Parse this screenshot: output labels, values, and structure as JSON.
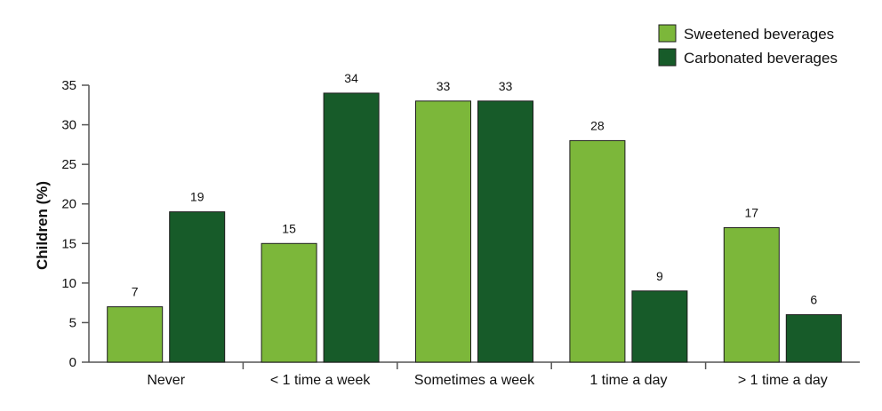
{
  "chart_data": {
    "type": "bar",
    "categories": [
      "Never",
      "< 1 time a week",
      "Sometimes a week",
      "1 time a day",
      "> 1 time a day"
    ],
    "series": [
      {
        "name": "Sweetened beverages",
        "values": [
          7,
          15,
          33,
          28,
          17
        ],
        "color": "#7cb73a"
      },
      {
        "name": "Carbonated beverages",
        "values": [
          19,
          34,
          33,
          9,
          6
        ],
        "color": "#175b29"
      }
    ],
    "title": "",
    "xlabel": "",
    "ylabel": "Children (%)",
    "ylim": [
      0,
      35
    ],
    "yticks": [
      "0",
      "5",
      "10",
      "15",
      "20",
      "25",
      "30",
      "35"
    ],
    "grid": false,
    "legend_position": "top-right",
    "data_labels": true
  }
}
